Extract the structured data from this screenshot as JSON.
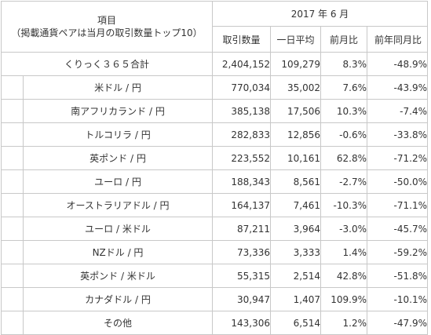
{
  "header": {
    "item_title": "項目",
    "item_note": "（掲載通貨ペアは当月の取引数量トップ10）",
    "period": "2017 年 6 月",
    "columns": [
      "取引数量",
      "一日平均",
      "前月比",
      "前年同月比"
    ]
  },
  "total": {
    "name": "くりっく３６５合計",
    "volume": "2,404,152",
    "daily_avg": "109,279",
    "mom": "8.3%",
    "yoy": "-48.9%"
  },
  "rows": [
    {
      "name": "米ドル / 円",
      "volume": "770,034",
      "daily_avg": "35,002",
      "mom": "7.6%",
      "yoy": "-43.9%"
    },
    {
      "name": "南アフリカランド / 円",
      "volume": "385,138",
      "daily_avg": "17,506",
      "mom": "10.3%",
      "yoy": "-7.4%"
    },
    {
      "name": "トルコリラ / 円",
      "volume": "282,833",
      "daily_avg": "12,856",
      "mom": "-0.6%",
      "yoy": "-33.8%"
    },
    {
      "name": "英ポンド / 円",
      "volume": "223,552",
      "daily_avg": "10,161",
      "mom": "62.8%",
      "yoy": "-71.2%"
    },
    {
      "name": "ユーロ / 円",
      "volume": "188,343",
      "daily_avg": "8,561",
      "mom": "-2.7%",
      "yoy": "-50.0%"
    },
    {
      "name": "オーストラリアドル / 円",
      "volume": "164,137",
      "daily_avg": "7,461",
      "mom": "-10.3%",
      "yoy": "-71.1%"
    },
    {
      "name": "ユーロ / 米ドル",
      "volume": "87,211",
      "daily_avg": "3,964",
      "mom": "-3.0%",
      "yoy": "-45.7%"
    },
    {
      "name": "NZドル / 円",
      "volume": "73,336",
      "daily_avg": "3,333",
      "mom": "1.4%",
      "yoy": "-59.2%"
    },
    {
      "name": "英ポンド / 米ドル",
      "volume": "55,315",
      "daily_avg": "2,514",
      "mom": "42.8%",
      "yoy": "-51.8%"
    },
    {
      "name": "カナダドル / 円",
      "volume": "30,947",
      "daily_avg": "1,407",
      "mom": "109.9%",
      "yoy": "-10.1%"
    },
    {
      "name": "その他",
      "volume": "143,306",
      "daily_avg": "6,514",
      "mom": "1.2%",
      "yoy": "-47.9%"
    }
  ]
}
